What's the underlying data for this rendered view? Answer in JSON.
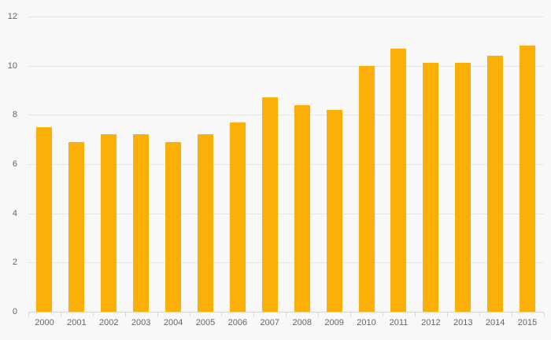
{
  "page": {
    "background_color": "#f8f8f8"
  },
  "chart_data": {
    "type": "bar",
    "title": "",
    "xlabel": "",
    "ylabel": "",
    "categories": [
      "2000",
      "2001",
      "2002",
      "2003",
      "2004",
      "2005",
      "2006",
      "2007",
      "2008",
      "2009",
      "2010",
      "2011",
      "2012",
      "2013",
      "2014",
      "2015"
    ],
    "values": [
      7.5,
      6.9,
      7.2,
      7.2,
      6.9,
      7.2,
      7.7,
      8.7,
      8.4,
      8.2,
      10.0,
      10.7,
      10.1,
      10.1,
      10.4,
      10.8
    ],
    "ylim": [
      0,
      12
    ],
    "ytick_interval": 2,
    "ytick_labels": [
      "0",
      "2",
      "4",
      "6",
      "8",
      "10",
      "12"
    ],
    "grid": true,
    "legend": false,
    "colors": {
      "bar": "#FBAF08",
      "gridline": "#e6e6e6",
      "axis_line": "#ccd6eb",
      "tick_mark": "#ccd6eb",
      "tick_label": "#666666"
    }
  }
}
